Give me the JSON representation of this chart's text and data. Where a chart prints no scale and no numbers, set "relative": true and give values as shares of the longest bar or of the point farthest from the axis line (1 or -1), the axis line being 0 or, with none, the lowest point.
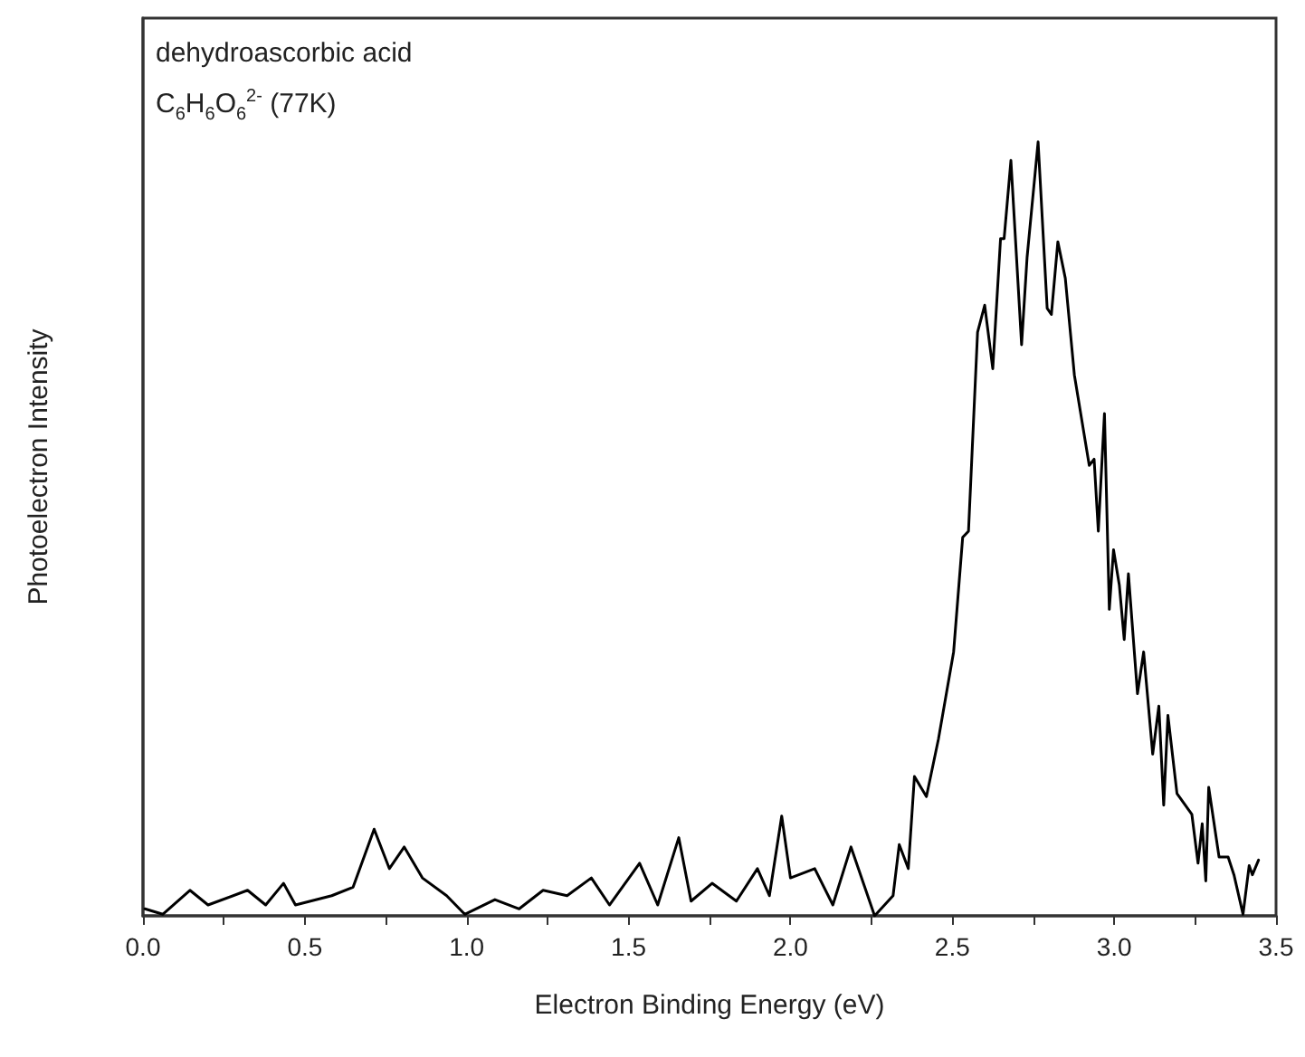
{
  "chart_data": {
    "type": "line",
    "relative": true,
    "xlabel": "Electron Binding Energy (eV)",
    "ylabel": "Photoelectron Intensity",
    "annotations": [
      "dehydroascorbic acid",
      "C$_{6}$H$_{6}$O$_{6}$$^{2-}$ (77K)"
    ],
    "xlim": [
      0,
      3.5
    ],
    "xticks": [
      {
        "value": 0,
        "label": "0.0"
      },
      {
        "value": 0.25,
        "label": null
      },
      {
        "value": 0.5,
        "label": "0.5"
      },
      {
        "value": 0.75,
        "label": null
      },
      {
        "value": 1,
        "label": "1.0"
      },
      {
        "value": 1.25,
        "label": null
      },
      {
        "value": 1.5,
        "label": "1.5"
      },
      {
        "value": 1.75,
        "label": null
      },
      {
        "value": 2,
        "label": "2.0"
      },
      {
        "value": 2.25,
        "label": null
      },
      {
        "value": 2.5,
        "label": "2.5"
      },
      {
        "value": 2.75,
        "label": null
      },
      {
        "value": 3,
        "label": "3.0"
      },
      {
        "value": 3.25,
        "label": null
      },
      {
        "value": 3.5,
        "label": "3.5"
      }
    ],
    "marker": "none",
    "line_style": "solid",
    "series": [
      {
        "color": "#000000",
        "x": [
          0.006,
          0.061,
          0.145,
          0.201,
          0.323,
          0.379,
          0.434,
          0.471,
          0.583,
          0.649,
          0.714,
          0.761,
          0.807,
          0.863,
          0.938,
          0.994,
          1.087,
          1.162,
          1.236,
          1.31,
          1.385,
          1.441,
          1.534,
          1.59,
          1.655,
          1.693,
          1.758,
          1.833,
          1.898,
          1.935,
          1.973,
          2.0,
          2.075,
          2.131,
          2.187,
          2.26,
          2.317,
          2.336,
          2.364,
          2.383,
          2.42,
          2.457,
          2.504,
          2.532,
          2.55,
          2.578,
          2.6,
          2.625,
          2.649,
          2.66,
          2.681,
          2.714,
          2.731,
          2.765,
          2.793,
          2.806,
          2.826,
          2.849,
          2.877,
          2.923,
          2.938,
          2.951,
          2.97,
          2.985,
          2.998,
          3.016,
          3.031,
          3.044,
          3.072,
          3.091,
          3.119,
          3.138,
          3.153,
          3.166,
          3.194,
          3.24,
          3.259,
          3.272,
          3.283,
          3.292,
          3.324,
          3.352,
          3.37,
          3.398,
          3.417,
          3.427,
          3.446
        ],
        "values": [
          0.009,
          0.002,
          0.033,
          0.014,
          0.033,
          0.014,
          0.042,
          0.014,
          0.026,
          0.037,
          0.112,
          0.061,
          0.089,
          0.049,
          0.026,
          0.002,
          0.021,
          0.009,
          0.033,
          0.026,
          0.049,
          0.014,
          0.068,
          0.014,
          0.101,
          0.019,
          0.042,
          0.019,
          0.061,
          0.026,
          0.129,
          0.049,
          0.061,
          0.014,
          0.089,
          0.0,
          0.026,
          0.092,
          0.061,
          0.18,
          0.154,
          0.228,
          0.341,
          0.489,
          0.497,
          0.754,
          0.789,
          0.707,
          0.875,
          0.875,
          0.976,
          0.738,
          0.851,
          1,
          0.785,
          0.777,
          0.871,
          0.824,
          0.699,
          0.582,
          0.59,
          0.497,
          0.649,
          0.396,
          0.473,
          0.427,
          0.357,
          0.442,
          0.287,
          0.341,
          0.209,
          0.271,
          0.143,
          0.259,
          0.158,
          0.131,
          0.068,
          0.119,
          0.045,
          0.166,
          0.076,
          0.076,
          0.053,
          0.002,
          0.065,
          0.053,
          0.072
        ]
      }
    ]
  }
}
